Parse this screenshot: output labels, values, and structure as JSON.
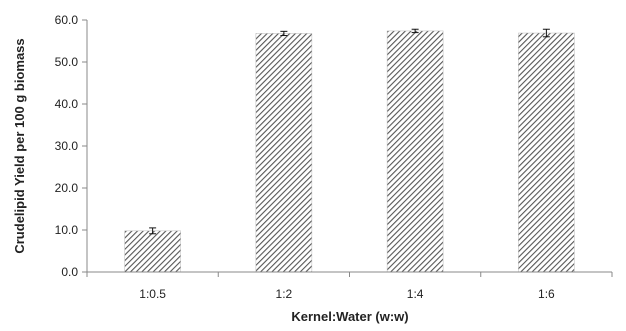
{
  "chart_data": {
    "type": "bar",
    "title": "",
    "xlabel": "Kernel:Water (w:w)",
    "ylabel": "Crudelipid Yield per 100 g biomass",
    "categories": [
      "1:0.5",
      "1:2",
      "1:4",
      "1:6"
    ],
    "values": [
      9.8,
      56.8,
      57.4,
      56.9
    ],
    "errors": [
      0.7,
      0.5,
      0.4,
      0.9
    ],
    "ylim": [
      0,
      60
    ],
    "yticks": [
      "0.0",
      "10.0",
      "20.0",
      "30.0",
      "40.0",
      "50.0",
      "60.0"
    ],
    "grid": false,
    "legend": "none",
    "bar_fill": "diagonal-hatch",
    "bar_color": "#555555"
  }
}
